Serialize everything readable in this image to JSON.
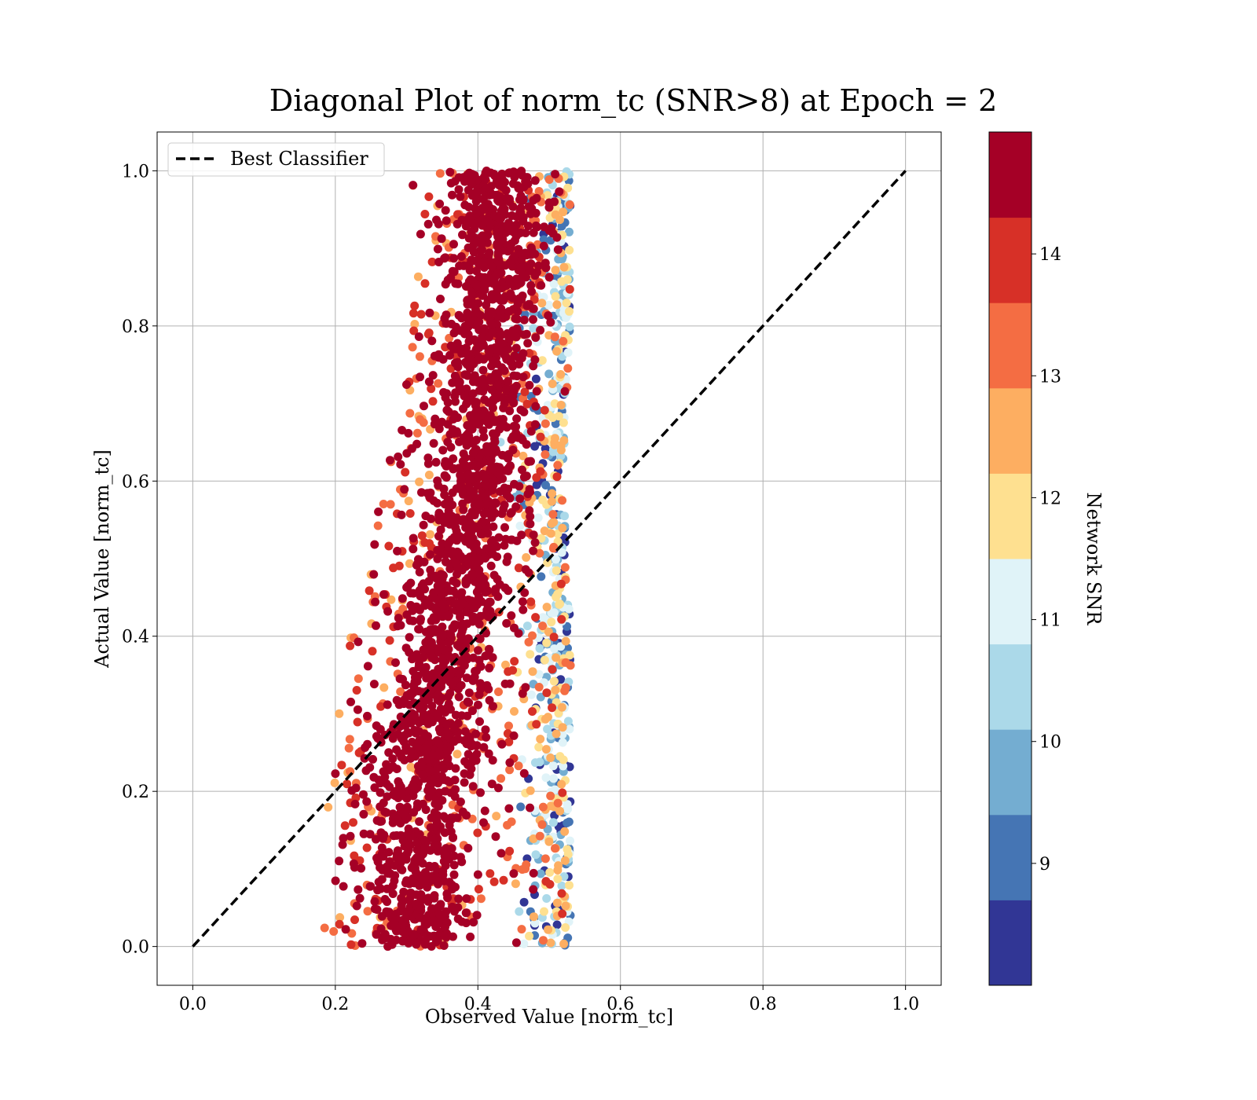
{
  "chart_data": {
    "type": "scatter",
    "title": "Diagonal Plot of norm_tc (SNR>8) at Epoch = 2",
    "xlabel": "Observed Value [norm_tc]",
    "ylabel": "Actual Value [norm_tc]",
    "xlim": [
      -0.05,
      1.05
    ],
    "ylim": [
      -0.05,
      1.05
    ],
    "xticks": [
      0.0,
      0.2,
      0.4,
      0.6,
      0.8,
      1.0
    ],
    "xtick_labels": [
      "0.0",
      "0.2",
      "0.4",
      "0.6",
      "0.8",
      "1.0"
    ],
    "yticks": [
      0.0,
      0.2,
      0.4,
      0.6,
      0.8,
      1.0
    ],
    "ytick_labels": [
      "0.0",
      "0.2",
      "0.4",
      "0.6",
      "0.8",
      "1.0"
    ],
    "grid": true,
    "legend": {
      "placement": "upper-left",
      "entries": [
        {
          "label": "Best Classifier",
          "style": "dashed",
          "color": "#000000"
        }
      ]
    },
    "reference_line": {
      "name": "Best Classifier",
      "x": [
        0.0,
        1.0
      ],
      "y": [
        0.0,
        1.0
      ]
    },
    "point_cloud": {
      "y_range": [
        0.0,
        1.0
      ],
      "band_low_edge_at_y": [
        [
          0.0,
          0.18
        ],
        [
          0.2,
          0.19
        ],
        [
          0.4,
          0.22
        ],
        [
          0.6,
          0.27
        ],
        [
          0.8,
          0.31
        ],
        [
          1.0,
          0.3
        ]
      ],
      "band_high_edge_at_y": [
        [
          0.0,
          0.53
        ],
        [
          0.2,
          0.53
        ],
        [
          0.4,
          0.53
        ],
        [
          0.6,
          0.52
        ],
        [
          0.8,
          0.53
        ],
        [
          1.0,
          0.53
        ]
      ],
      "dense_core_center_at_y": [
        [
          0.0,
          0.31
        ],
        [
          0.2,
          0.32
        ],
        [
          0.4,
          0.36
        ],
        [
          0.6,
          0.4
        ],
        [
          0.8,
          0.42
        ],
        [
          1.0,
          0.43
        ]
      ],
      "dominant_snr": 15,
      "low_snr_side": "right edge"
    },
    "colorbar": {
      "label": "Network SNR",
      "colormap": "RdYlBu_r",
      "range": [
        8,
        15
      ],
      "bins": [
        {
          "from": 8,
          "to": 8.7,
          "color": "#313695"
        },
        {
          "from": 8.7,
          "to": 9.4,
          "color": "#4575b4"
        },
        {
          "from": 9.4,
          "to": 10.1,
          "color": "#74add1"
        },
        {
          "from": 10.1,
          "to": 10.8,
          "color": "#abd9e9"
        },
        {
          "from": 10.8,
          "to": 11.5,
          "color": "#e0f3f8"
        },
        {
          "from": 11.5,
          "to": 12.2,
          "color": "#fee090"
        },
        {
          "from": 12.2,
          "to": 12.9,
          "color": "#fdae61"
        },
        {
          "from": 12.9,
          "to": 13.6,
          "color": "#f46d43"
        },
        {
          "from": 13.6,
          "to": 14.3,
          "color": "#d73027"
        },
        {
          "from": 14.3,
          "to": 15,
          "color": "#a50026"
        }
      ],
      "ticks": [
        9,
        10,
        11,
        12,
        13,
        14
      ],
      "tick_labels": [
        "9",
        "10",
        "11",
        "12",
        "13",
        "14"
      ]
    }
  }
}
